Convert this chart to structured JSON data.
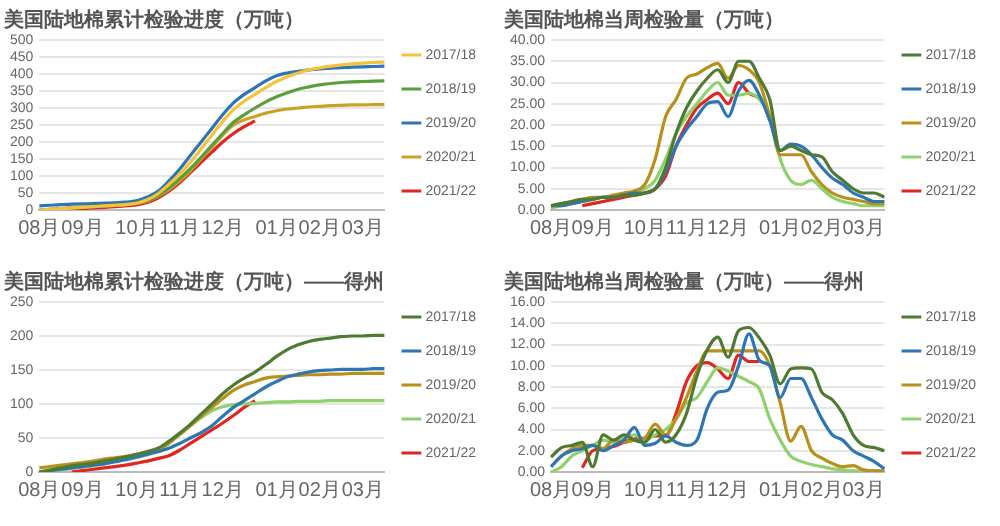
{
  "chart_data": [
    {
      "type": "line",
      "title": "美国陆地棉累计检验进度（万吨）",
      "categories": [
        "08月",
        null,
        null,
        null,
        "09月",
        null,
        null,
        null,
        null,
        "10月",
        null,
        null,
        null,
        "11月",
        null,
        null,
        null,
        "12月",
        null,
        null,
        null,
        null,
        "01月",
        null,
        null,
        null,
        "02月",
        null,
        null,
        null,
        "03月",
        null,
        null
      ],
      "ylim": [
        0,
        500
      ],
      "yticks": [
        0,
        50,
        100,
        150,
        200,
        250,
        300,
        350,
        400,
        450,
        500
      ],
      "grid": "y",
      "legend": "right",
      "marker": "none",
      "series": [
        {
          "name": "2017/18",
          "color": "#f5c33b",
          "values": [
            0,
            2,
            4,
            6,
            8,
            10,
            12,
            14,
            16,
            20,
            30,
            48,
            75,
            105,
            140,
            180,
            220,
            260,
            295,
            320,
            340,
            360,
            378,
            392,
            403,
            412,
            418,
            423,
            427,
            430,
            432,
            434,
            435
          ]
        },
        {
          "name": "2018/19",
          "color": "#5b9e3d",
          "values": [
            0,
            2,
            4,
            6,
            8,
            10,
            12,
            14,
            16,
            19,
            27,
            42,
            65,
            92,
            122,
            155,
            190,
            225,
            258,
            280,
            300,
            318,
            333,
            345,
            355,
            362,
            368,
            372,
            375,
            377,
            378,
            379,
            380
          ]
        },
        {
          "name": "2019/20",
          "color": "#2e75b6",
          "values": [
            12,
            14,
            16,
            17,
            18,
            19,
            20,
            21,
            23,
            27,
            38,
            55,
            85,
            120,
            160,
            200,
            240,
            280,
            315,
            340,
            360,
            380,
            395,
            403,
            408,
            412,
            415,
            417,
            419,
            420,
            421,
            422,
            423
          ]
        },
        {
          "name": "2020/21",
          "color": "#c9a227",
          "values": [
            0,
            2,
            4,
            6,
            8,
            10,
            12,
            14,
            16,
            19,
            26,
            40,
            60,
            85,
            115,
            150,
            185,
            220,
            250,
            265,
            275,
            285,
            292,
            297,
            300,
            303,
            305,
            307,
            308,
            309,
            309,
            310,
            310
          ]
        },
        {
          "name": "2021/22",
          "color": "#e0261f",
          "values": [
            null,
            null,
            null,
            2,
            4,
            6,
            8,
            10,
            12,
            15,
            22,
            35,
            55,
            80,
            110,
            140,
            170,
            200,
            225,
            245,
            262,
            null,
            null,
            null,
            null,
            null,
            null,
            null,
            null,
            null,
            null,
            null,
            null
          ]
        }
      ]
    },
    {
      "type": "line",
      "title": "美国陆地棉当周检验量（万吨）",
      "categories": [
        "08月",
        null,
        null,
        null,
        "09月",
        null,
        null,
        null,
        null,
        "10月",
        null,
        null,
        null,
        "11月",
        null,
        null,
        null,
        "12月",
        null,
        null,
        null,
        null,
        "01月",
        null,
        null,
        null,
        "02月",
        null,
        null,
        null,
        "03月",
        null,
        null
      ],
      "ylim": [
        0,
        40
      ],
      "yticks": [
        {
          "value": 0,
          "label": "0.00"
        },
        {
          "value": 5,
          "label": "5.00"
        },
        {
          "value": 10,
          "label": "10.00"
        },
        {
          "value": 15,
          "label": "15.00"
        },
        {
          "value": 20,
          "label": "20.00"
        },
        {
          "value": 25,
          "label": "25.00"
        },
        {
          "value": 30,
          "label": "30.00"
        },
        {
          "value": 35,
          "label": "35.00"
        },
        {
          "value": 40,
          "label": "40.00"
        }
      ],
      "grid": "y",
      "legend": "right",
      "marker": "none",
      "series": [
        {
          "name": "2017/18",
          "color": "#4e7a32",
          "values": [
            1,
            1.5,
            2,
            2.5,
            2.5,
            3,
            3,
            3.5,
            3.5,
            4,
            5,
            10,
            18,
            24,
            28,
            31,
            33,
            30,
            35,
            35,
            31,
            26,
            14,
            15,
            14,
            13,
            12.5,
            9,
            7,
            5,
            4,
            4,
            3
          ]
        },
        {
          "name": "2018/19",
          "color": "#2e75b6",
          "values": [
            1,
            1,
            1.5,
            2,
            2.5,
            3,
            3,
            3.5,
            4,
            4,
            5,
            9,
            15,
            19,
            22,
            25,
            25.5,
            22,
            28,
            30.5,
            27,
            21,
            14,
            15.5,
            15,
            13,
            10,
            7.5,
            6,
            4,
            3,
            2,
            2
          ]
        },
        {
          "name": "2019/20",
          "color": "#b8901a",
          "values": [
            1,
            1.5,
            2,
            2.5,
            3,
            3,
            3.5,
            4,
            4.5,
            6,
            12,
            22,
            26,
            31,
            32,
            33.5,
            34.5,
            31,
            34,
            33,
            30,
            22,
            13,
            13,
            13,
            9,
            6,
            4,
            3,
            2.5,
            2,
            1.5,
            1.5
          ]
        },
        {
          "name": "2020/21",
          "color": "#8fd16a",
          "values": [
            0.5,
            1,
            1.5,
            2,
            2.5,
            3,
            3,
            3.5,
            4,
            5,
            7,
            12,
            18,
            22,
            25,
            28,
            30,
            27,
            27,
            27.5,
            26,
            22,
            12,
            7,
            6,
            7,
            5,
            3,
            2,
            1.5,
            1,
            1,
            1
          ]
        },
        {
          "name": "2021/22",
          "color": "#e0261f",
          "values": [
            null,
            null,
            null,
            1,
            1.5,
            2,
            2.5,
            3,
            3.5,
            4,
            5,
            8,
            15,
            20,
            24,
            26,
            27.5,
            25,
            30,
            27.5,
            26.5,
            null,
            null,
            null,
            null,
            null,
            null,
            null,
            null,
            null,
            null,
            null,
            null
          ]
        }
      ]
    },
    {
      "type": "line",
      "title": "美国陆地棉累计检验进度（万吨）——得州",
      "categories": [
        "08月",
        null,
        null,
        null,
        "09月",
        null,
        null,
        null,
        null,
        "10月",
        null,
        null,
        null,
        "11月",
        null,
        null,
        null,
        "12月",
        null,
        null,
        null,
        null,
        "01月",
        null,
        null,
        null,
        "02月",
        null,
        null,
        null,
        "03月",
        null,
        null
      ],
      "ylim": [
        0,
        250
      ],
      "yticks": [
        0,
        50,
        100,
        150,
        200,
        250
      ],
      "grid": "y",
      "legend": "right",
      "marker": "none",
      "series": [
        {
          "name": "2017/18",
          "color": "#4e7a32",
          "values": [
            0,
            3,
            6,
            9,
            11,
            13,
            16,
            19,
            22,
            26,
            30,
            35,
            45,
            57,
            70,
            85,
            100,
            115,
            128,
            138,
            147,
            158,
            170,
            180,
            187,
            192,
            195,
            197,
            199,
            200,
            200,
            201,
            201
          ]
        },
        {
          "name": "2018/19",
          "color": "#2e75b6",
          "values": [
            0,
            2,
            4,
            6,
            8,
            10,
            12,
            15,
            18,
            22,
            26,
            30,
            35,
            42,
            50,
            58,
            68,
            82,
            95,
            105,
            115,
            125,
            133,
            140,
            144,
            147,
            149,
            150,
            151,
            151,
            151,
            152,
            152
          ]
        },
        {
          "name": "2019/20",
          "color": "#b8901a",
          "values": [
            6,
            8,
            10,
            12,
            14,
            16,
            19,
            21,
            23,
            26,
            29,
            33,
            42,
            55,
            68,
            82,
            95,
            108,
            120,
            128,
            133,
            138,
            140,
            141,
            142,
            143,
            143,
            144,
            144,
            145,
            145,
            145,
            145
          ]
        },
        {
          "name": "2020/21",
          "color": "#8fd16a",
          "values": [
            0,
            1,
            3,
            5,
            7,
            9,
            12,
            15,
            18,
            21,
            25,
            31,
            42,
            55,
            68,
            80,
            90,
            96,
            99,
            100,
            101,
            102,
            103,
            103,
            104,
            104,
            104,
            105,
            105,
            105,
            105,
            105,
            105
          ]
        },
        {
          "name": "2021/22",
          "color": "#e0261f",
          "values": [
            null,
            null,
            null,
            0,
            2,
            4,
            6,
            8,
            10,
            13,
            16,
            20,
            24,
            32,
            42,
            52,
            62,
            72,
            83,
            95,
            105,
            null,
            null,
            null,
            null,
            null,
            null,
            null,
            null,
            null,
            null,
            null,
            null
          ]
        }
      ]
    },
    {
      "type": "line",
      "title": "美国陆地棉当周检验量（万吨）——得州",
      "categories": [
        "08月",
        null,
        null,
        null,
        "09月",
        null,
        null,
        null,
        null,
        "10月",
        null,
        null,
        null,
        "11月",
        null,
        null,
        null,
        "12月",
        null,
        null,
        null,
        null,
        "01月",
        null,
        null,
        null,
        "02月",
        null,
        null,
        null,
        "03月",
        null,
        null
      ],
      "ylim": [
        0,
        16
      ],
      "yticks": [
        {
          "value": 0,
          "label": "0.00"
        },
        {
          "value": 2,
          "label": "2.00"
        },
        {
          "value": 4,
          "label": "4.00"
        },
        {
          "value": 6,
          "label": "6.00"
        },
        {
          "value": 8,
          "label": "8.00"
        },
        {
          "value": 10,
          "label": "10.00"
        },
        {
          "value": 12,
          "label": "12.00"
        },
        {
          "value": 14,
          "label": "14.00"
        },
        {
          "value": 16,
          "label": "16.00"
        }
      ],
      "grid": "y",
      "legend": "right",
      "marker": "none",
      "series": [
        {
          "name": "2017/18",
          "color": "#4e7a32",
          "values": [
            1.4,
            2.3,
            2.5,
            2.8,
            0.5,
            3.5,
            3,
            3.5,
            3,
            2.8,
            4,
            2.8,
            3.5,
            5.5,
            9,
            11.5,
            12.7,
            10.8,
            13.3,
            13.6,
            12.6,
            11,
            8.3,
            9.7,
            9.8,
            9.7,
            7.5,
            6.8,
            5.5,
            3.5,
            2.5,
            2.3,
            2
          ]
        },
        {
          "name": "2018/19",
          "color": "#2e75b6",
          "values": [
            0.5,
            1.5,
            2,
            2.2,
            2.5,
            2,
            2.5,
            3,
            4.2,
            2.5,
            2.7,
            3.4,
            2.8,
            2.5,
            3,
            6,
            7.5,
            7.7,
            10,
            13,
            10.5,
            10,
            7,
            8.8,
            8.8,
            7,
            5,
            3.5,
            3,
            2,
            1.5,
            1,
            0.3
          ]
        },
        {
          "name": "2019/20",
          "color": "#b8901a",
          "values": [
            0.5,
            1.5,
            2.2,
            2.5,
            2.5,
            2.2,
            3,
            2.8,
            3,
            3.2,
            4.5,
            3.5,
            5,
            7,
            9.5,
            11.4,
            11.4,
            11.4,
            11.4,
            11.4,
            11.4,
            10,
            6.5,
            2.9,
            4.3,
            2,
            1.3,
            0.8,
            0.5,
            0.6,
            0.2,
            0.1,
            0.1
          ]
        },
        {
          "name": "2020/21",
          "color": "#8fd16a",
          "values": [
            0,
            0.5,
            1.5,
            2,
            2.5,
            3,
            2.8,
            3.2,
            3.5,
            3,
            3.5,
            4,
            5,
            6.5,
            7,
            8.5,
            9.8,
            9.5,
            9,
            8.5,
            7.8,
            5,
            3,
            1.5,
            1,
            0.7,
            0.5,
            0.3,
            0.2,
            0.1,
            0.1,
            0.1,
            0.1
          ]
        },
        {
          "name": "2021/22",
          "color": "#e0261f",
          "values": [
            null,
            null,
            null,
            0.4,
            2,
            2.2,
            2.4,
            2.8,
            3.1,
            3.2,
            3.4,
            3.4,
            5.5,
            8.5,
            10,
            10.3,
            9.7,
            8.8,
            11,
            10.4,
            10.4,
            null,
            null,
            null,
            null,
            null,
            null,
            null,
            null,
            null,
            null,
            null,
            null
          ]
        }
      ]
    }
  ]
}
